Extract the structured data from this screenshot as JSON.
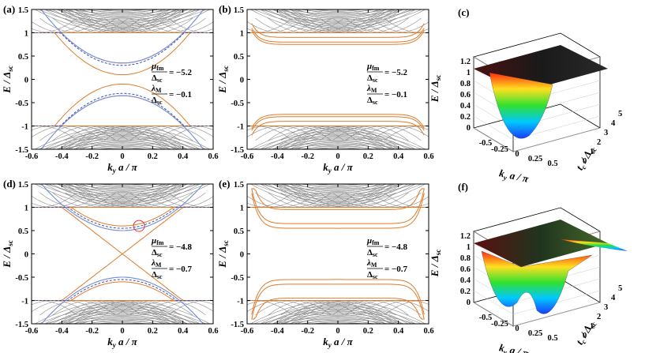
{
  "panels": [
    {
      "label": "(a)",
      "type": "band",
      "mu_num": "μ",
      "mu_sub": "fm",
      "den": "Δ",
      "den_sub": "sc",
      "mu_val": "= −5.2",
      "lam_num": "λ",
      "lam_sub": "M",
      "lam_val": "= −0.1"
    },
    {
      "label": "(b)",
      "type": "band",
      "mu_num": "μ",
      "mu_sub": "fm",
      "den": "Δ",
      "den_sub": "sc",
      "mu_val": "= −5.2",
      "lam_num": "λ",
      "lam_sub": "M",
      "lam_val": "= −0.1"
    },
    {
      "label": "(c)",
      "type": "surface3d"
    },
    {
      "label": "(d)",
      "type": "band",
      "mu_num": "μ",
      "mu_sub": "fm",
      "den": "Δ",
      "den_sub": "sc",
      "mu_val": "= −4.8",
      "lam_num": "λ",
      "lam_sub": "M",
      "lam_val": "= −0.7"
    },
    {
      "label": "(e)",
      "type": "band",
      "mu_num": "μ",
      "mu_sub": "fm",
      "den": "Δ",
      "den_sub": "sc",
      "mu_val": "= −4.8",
      "lam_num": "λ",
      "lam_sub": "M",
      "lam_val": "= −0.7"
    },
    {
      "label": "(f)",
      "type": "surface3d"
    }
  ],
  "axes2d": {
    "xlabel": "k y a / π",
    "ylabel": "E / Δsc",
    "xticks": [
      "-0.6",
      "-0.4",
      "-0.2",
      "0",
      "0.2",
      "0.4",
      "0.6"
    ],
    "yticks": [
      "-1.5",
      "-1",
      "-0.5",
      "0",
      "0.5",
      "1",
      "1.5"
    ],
    "xlim": [
      -0.6,
      0.6
    ],
    "ylim": [
      -1.5,
      1.5
    ]
  },
  "axes3d": {
    "zticks": [
      "0",
      "0.2",
      "0.4",
      "0.6",
      "0.8",
      "1",
      "1.2"
    ],
    "xticks": [
      "-0.5",
      "-0.25",
      "0",
      "0.25",
      "0.5"
    ],
    "yticks": [
      "0",
      "1",
      "2",
      "3",
      "4",
      "5"
    ],
    "zlabel": "E / Δsc",
    "xlabel": "k y a / π",
    "ylabel": "t c / Δsc"
  },
  "colors": {
    "bulk": "#8c8c8c",
    "edge": "#e07b2a",
    "blue": "#7b8fd6",
    "dashed": "#3b4fb0",
    "circle": "#e0332a"
  },
  "chart_data": [
    {
      "type": "line",
      "panel": "(a)",
      "xlim": [
        -0.6,
        0.6
      ],
      "ylim": [
        -1.5,
        1.5
      ],
      "series": [
        {
          "x": [
            -0.6,
            -0.4,
            -0.2,
            0,
            0.2,
            0.4,
            0.6
          ],
          "y": [
            1.0,
            1.0,
            0.55,
            0.1,
            0.55,
            1.0,
            1.0
          ]
        }
      ]
    },
    {
      "type": "line",
      "panel": "(b)",
      "xlim": [
        -0.6,
        0.6
      ],
      "ylim": [
        -1.5,
        1.5
      ],
      "series": [
        {
          "x": [
            -0.55,
            0,
            0.55
          ],
          "y": [
            0.8,
            0.75,
            0.8
          ]
        }
      ]
    },
    {
      "type": "line",
      "panel": "(d)",
      "xlim": [
        -0.6,
        0.6
      ],
      "ylim": [
        -1.5,
        1.5
      ],
      "series": [
        {
          "x": [
            -0.4,
            0,
            0.4
          ],
          "y": [
            -1.0,
            0,
            1.0
          ]
        }
      ]
    },
    {
      "type": "line",
      "panel": "(e)",
      "xlim": [
        -0.6,
        0.6
      ],
      "ylim": [
        -1.5,
        1.5
      ],
      "series": [
        {
          "x": [
            -0.55,
            0,
            0.55
          ],
          "y": [
            0.55,
            0.65,
            0.55
          ]
        }
      ]
    }
  ]
}
